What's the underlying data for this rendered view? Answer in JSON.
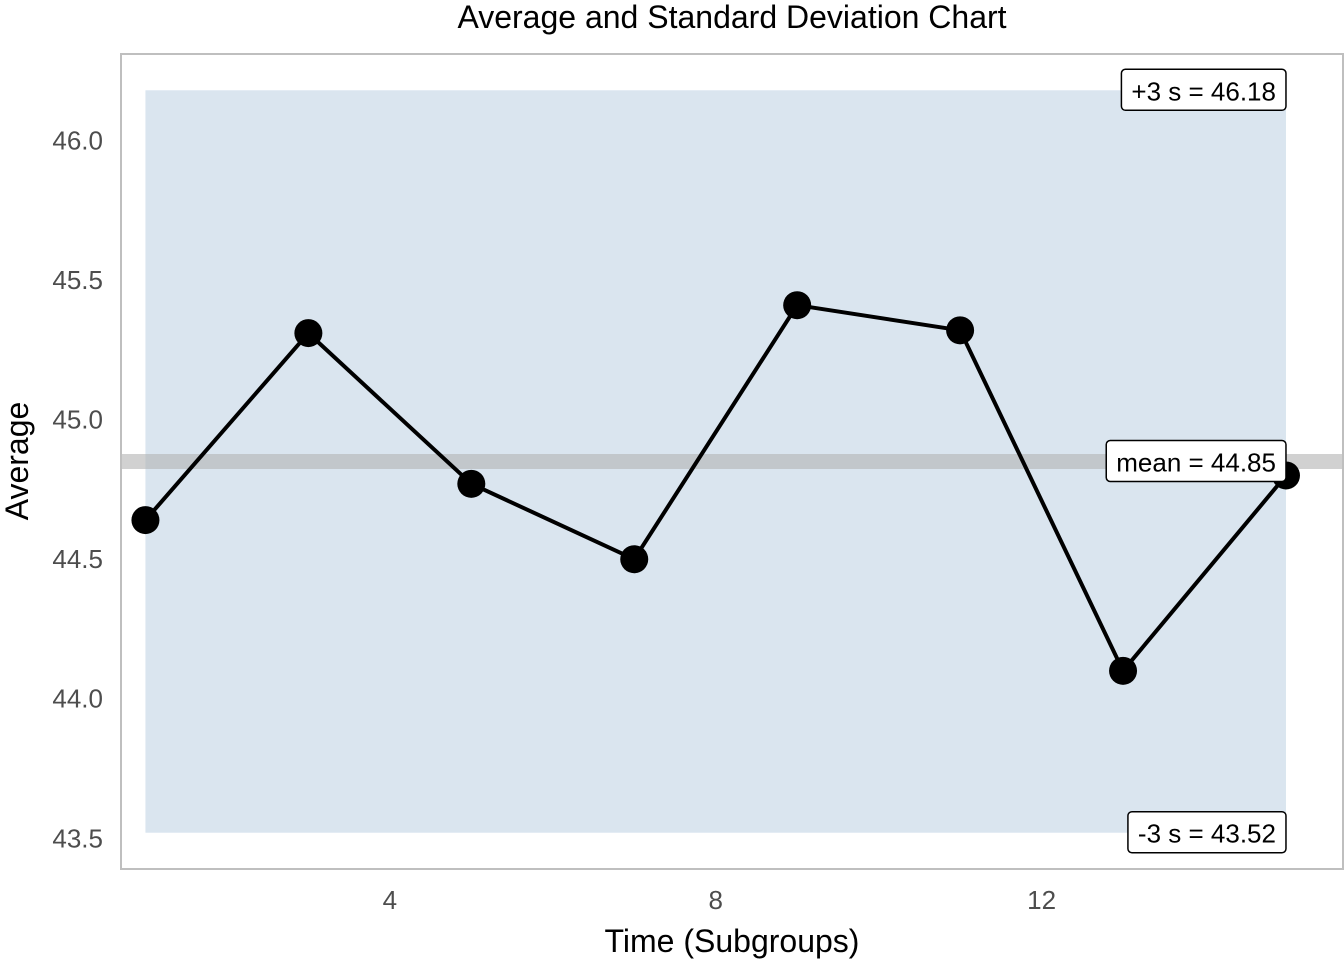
{
  "chart_data": {
    "type": "line",
    "title": "Average and Standard Deviation Chart",
    "xlabel": "Time (Subgroups)",
    "ylabel": "Average",
    "x": [
      1,
      3,
      5,
      7,
      9,
      11,
      13,
      15
    ],
    "series": [
      {
        "values": [
          44.64,
          45.31,
          44.77,
          44.5,
          45.41,
          45.32,
          44.1,
          44.8
        ]
      }
    ],
    "xlim": [
      0.7,
      15.7
    ],
    "ylim": [
      43.39,
      46.31
    ],
    "xticks": [
      4,
      8,
      12
    ],
    "xtick_labels": [
      "4",
      "8",
      "12"
    ],
    "yticks": [
      43.5,
      44.0,
      44.5,
      45.0,
      45.5,
      46.0
    ],
    "ytick_labels": [
      "43.5",
      "44.0",
      "44.5",
      "45.0",
      "45.5",
      "46.0"
    ],
    "mean": 44.85,
    "upper": 46.18,
    "lower": 43.52,
    "annotations": {
      "upper": "+3 s = 46.18",
      "mean": "mean = 44.85",
      "lower": "-3 s = 43.52"
    },
    "grid": false,
    "legend": "none",
    "colors": {
      "band": "#dae5ef",
      "mean_line": "#b3b3b3",
      "line": "#000000",
      "points": "#000000",
      "panel_border": "#bfbfbf"
    }
  }
}
